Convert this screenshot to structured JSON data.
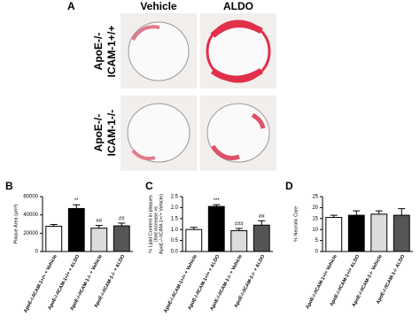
{
  "panel_a": {
    "letter": "A",
    "columns": [
      "Vehicle",
      "ALDO"
    ],
    "rows": [
      [
        "ApoE-/-",
        "ICAM-1+/+"
      ],
      [
        "ApoE-/-",
        "ICAM-1-/-"
      ]
    ]
  },
  "chart_data": [
    {
      "type": "bar",
      "letter": "B",
      "ylabel": [
        "Plaque Area (μm²)"
      ],
      "categories": [
        "ApoE-/-/ICAM-1+/+ + Vehicle",
        "ApoE-/-/ICAM-1+/+ + ALDO",
        "ApoE-/-/ICAM-1-/- + Vehicle",
        "ApoE-/-/ICAM-1-/- + ALDO"
      ],
      "values": [
        27500,
        47000,
        25500,
        28000
      ],
      "errors": [
        2000,
        4000,
        3000,
        3000
      ],
      "annotations": [
        null,
        "**",
        "##",
        "##"
      ],
      "colors": [
        "#ffffff",
        "#000000",
        "#dcdcdc",
        "#555555"
      ],
      "ylim": [
        0,
        60000
      ],
      "yticks": [
        0,
        20000,
        40000,
        60000
      ]
    },
    {
      "type": "bar",
      "letter": "C",
      "ylabel": [
        "% Lipid Content in plaques",
        "(fold increase vs",
        "ApoE-/-/ICAM-1+/+ Vehicle)"
      ],
      "categories": [
        "ApoE-/-/ICAM-1+/+ + Vehicle",
        "ApoE-/-/ICAM-1+/+ + ALDO",
        "ApoE-/-/ICAM-1-/- + Vehicle",
        "ApoE-/-/ICAM-1-/- + ALDO"
      ],
      "values": [
        1.0,
        2.05,
        0.95,
        1.2
      ],
      "errors": [
        0.1,
        0.08,
        0.1,
        0.2
      ],
      "annotations": [
        null,
        "***",
        "###",
        "##"
      ],
      "colors": [
        "#ffffff",
        "#000000",
        "#dcdcdc",
        "#555555"
      ],
      "ylim": [
        0,
        2.5
      ],
      "yticks": [
        {
          "value": 0,
          "label": "0.0"
        },
        0.5,
        {
          "value": 1,
          "label": "1.0"
        },
        1.5,
        {
          "value": 2,
          "label": "2.0"
        },
        2.5
      ]
    },
    {
      "type": "bar",
      "letter": "D",
      "ylabel": [
        "% Necrotic Core"
      ],
      "categories": [
        "ApoE-/-/ICAM-1+/+ Vehicle",
        "ApoE-/-/ICAM-1+/+ ALDO",
        "ApoE-/-/ICAM-1-/- Vehicle",
        "ApoE-/-/ICAM-1-/- ALDO"
      ],
      "values": [
        15.5,
        16.5,
        17,
        16.5
      ],
      "errors": [
        1,
        2,
        1.5,
        3
      ],
      "annotations": [
        null,
        null,
        null,
        null
      ],
      "colors": [
        "#ffffff",
        "#000000",
        "#dcdcdc",
        "#555555"
      ],
      "ylim": [
        0,
        25
      ],
      "yticks": [
        0,
        5,
        10,
        15,
        20,
        25
      ]
    }
  ]
}
